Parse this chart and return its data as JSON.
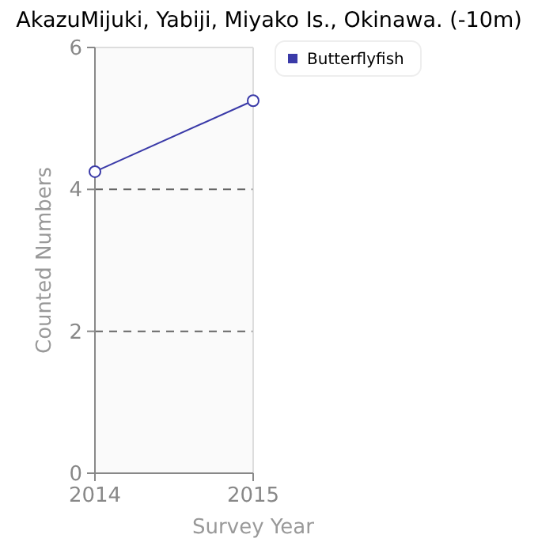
{
  "chart_data": {
    "type": "line",
    "title": "AkazuMijuki, Yabiji, Miyako Is., Okinawa. (-10m)",
    "xlabel": "Survey Year",
    "ylabel": "Counted Numbers",
    "x": [
      2014,
      2015
    ],
    "xlim": [
      2014,
      2015
    ],
    "xticks": [
      2014,
      2015
    ],
    "ylim": [
      0,
      6
    ],
    "yticks": [
      0,
      2,
      4,
      6
    ],
    "grid": "y",
    "legend": "top right",
    "marker": "circle",
    "line_style": "solid",
    "series": [
      {
        "name": "Butterflyfish",
        "color": "#3a3aa8",
        "values": [
          4.25,
          5.25
        ]
      }
    ]
  }
}
